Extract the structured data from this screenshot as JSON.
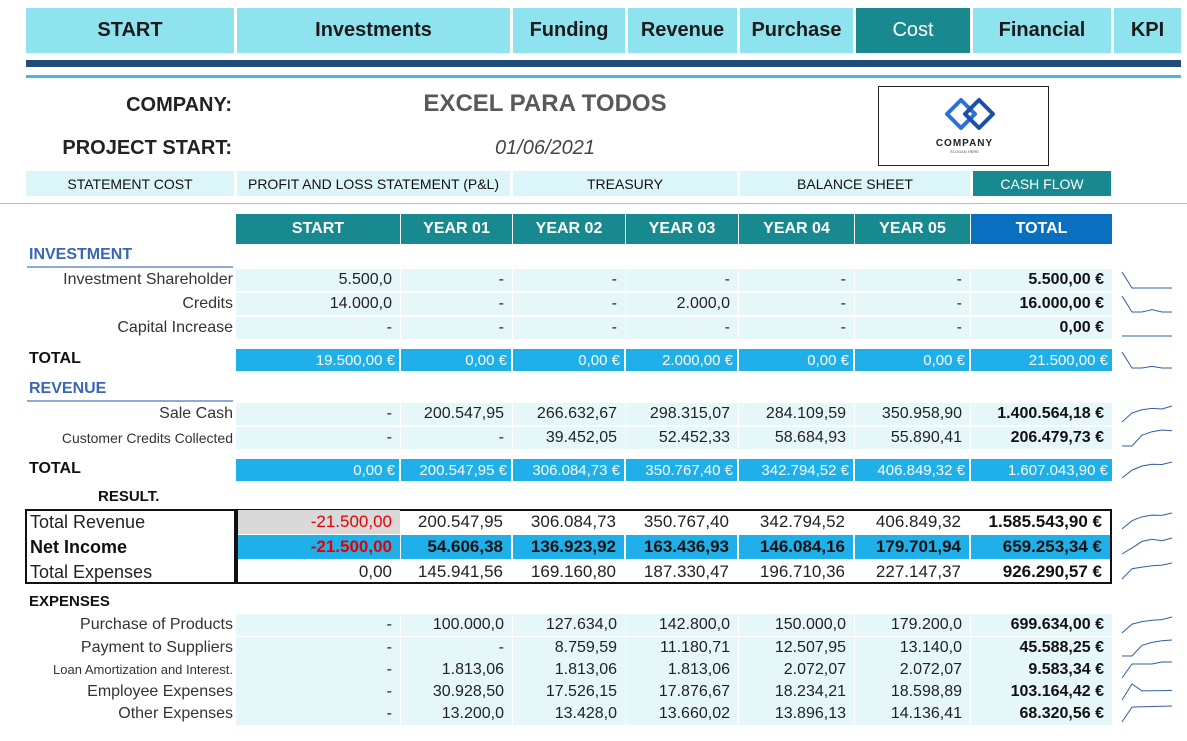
{
  "nav": [
    {
      "label": "START"
    },
    {
      "label": "Investments"
    },
    {
      "label": "Funding"
    },
    {
      "label": "Revenue"
    },
    {
      "label": "Purchase"
    },
    {
      "label": "Cost"
    },
    {
      "label": "Financial"
    },
    {
      "label": "KPI"
    }
  ],
  "header": {
    "company_label": "COMPANY:",
    "company_name": "EXCEL PARA TODOS",
    "project_label": "PROJECT START:",
    "project_date": "01/06/2021",
    "logo_text": "COMPANY",
    "logo_slogan": "SLOGAN HERE"
  },
  "subtabs": [
    {
      "label": "STATEMENT COST"
    },
    {
      "label": "PROFIT AND LOSS STATEMENT (P&L)"
    },
    {
      "label": "TREASURY"
    },
    {
      "label": "BALANCE SHEET"
    },
    {
      "label": "CASH FLOW"
    }
  ],
  "columns": [
    "START",
    "YEAR 01",
    "YEAR 02",
    "YEAR 03",
    "YEAR 04",
    "YEAR 05",
    "TOTAL"
  ],
  "investment": {
    "title": "INVESTMENT",
    "rows": [
      {
        "label": "Investment Shareholder",
        "values": [
          "5.500,0",
          "-",
          "-",
          "-",
          "-",
          "-"
        ],
        "total": "5.500,00 €"
      },
      {
        "label": "Credits",
        "values": [
          "14.000,0",
          "-",
          "-",
          "2.000,0",
          "-",
          "-"
        ],
        "total": "16.000,00 €"
      },
      {
        "label": "Capital Increase",
        "values": [
          "-",
          "-",
          "-",
          "-",
          "-",
          "-"
        ],
        "total": "0,00 €"
      }
    ],
    "total_label": "TOTAL",
    "total_values": [
      "19.500,00 €",
      "0,00 €",
      "0,00 €",
      "2.000,00 €",
      "0,00 €",
      "0,00 €"
    ],
    "total_sum": "21.500,00 €"
  },
  "revenue": {
    "title": "REVENUE",
    "rows": [
      {
        "label": "Sale Cash",
        "values": [
          "-",
          "200.547,95",
          "266.632,67",
          "298.315,07",
          "284.109,59",
          "350.958,90"
        ],
        "total": "1.400.564,18 €"
      },
      {
        "label": "Customer Credits Collected",
        "values": [
          "-",
          "-",
          "39.452,05",
          "52.452,33",
          "58.684,93",
          "55.890,41"
        ],
        "total": "206.479,73 €"
      }
    ],
    "total_label": "TOTAL",
    "total_values": [
      "0,00 €",
      "200.547,95 €",
      "306.084,73 €",
      "350.767,40 €",
      "342.794,52 €",
      "406.849,32 €"
    ],
    "total_sum": "1.607.043,90 €"
  },
  "result": {
    "title": "RESULT.",
    "rows": [
      {
        "label": "Total Revenue",
        "values": [
          "-21.500,00",
          "200.547,95",
          "306.084,73",
          "350.767,40",
          "342.794,52",
          "406.849,32"
        ],
        "total": "1.585.543,90 €"
      },
      {
        "label": "Net Income",
        "values": [
          "-21.500,00",
          "54.606,38",
          "136.923,92",
          "163.436,93",
          "146.084,16",
          "179.701,94"
        ],
        "total": "659.253,34 €"
      },
      {
        "label": "Total Expenses",
        "values": [
          "0,00",
          "145.941,56",
          "169.160,80",
          "187.330,47",
          "196.710,36",
          "227.147,37"
        ],
        "total": "926.290,57 €"
      }
    ]
  },
  "expenses": {
    "title": "EXPENSES",
    "rows": [
      {
        "label": "Purchase of Products",
        "values": [
          "-",
          "100.000,0",
          "127.634,0",
          "142.800,0",
          "150.000,0",
          "179.200,0"
        ],
        "total": "699.634,00 €"
      },
      {
        "label": "Payment to Suppliers",
        "values": [
          "-",
          "-",
          "8.759,59",
          "11.180,71",
          "12.507,95",
          "13.140,0"
        ],
        "total": "45.588,25 €"
      },
      {
        "label": "Loan Amortization and Interest.",
        "values": [
          "-",
          "1.813,06",
          "1.813,06",
          "1.813,06",
          "2.072,07",
          "2.072,07"
        ],
        "total": "9.583,34 €"
      },
      {
        "label": "Employee Expenses",
        "values": [
          "-",
          "30.928,50",
          "17.526,15",
          "17.876,67",
          "18.234,21",
          "18.598,89"
        ],
        "total": "103.164,42 €"
      },
      {
        "label": "Other Expenses",
        "values": [
          "-",
          "13.200,0",
          "13.428,0",
          "13.660,02",
          "13.896,13",
          "14.136,41"
        ],
        "total": "68.320,56 €"
      }
    ]
  },
  "colors": {
    "teal": "#17898f",
    "nav_bg": "#8fe3ee",
    "blue_total": "#1fb0ea",
    "negative": "#e30000"
  }
}
